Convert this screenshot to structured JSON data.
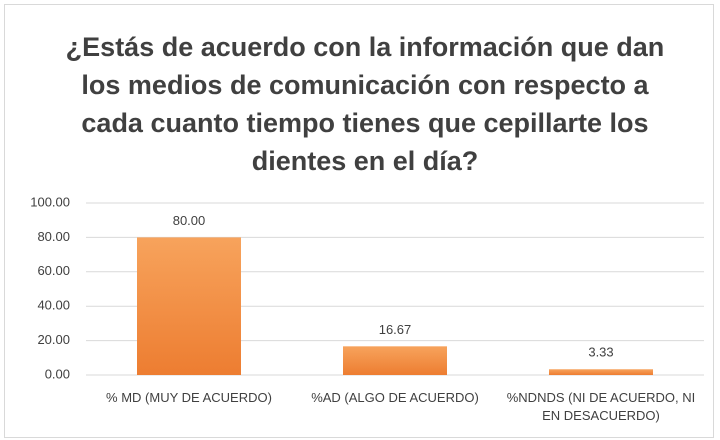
{
  "chart_data": {
    "type": "bar",
    "title": "¿Estás de acuerdo con la información que dan los medios de comunicación con respecto a cada cuanto tiempo tienes que cepillarte los dientes en el día?",
    "categories": [
      "% MD (MUY DE ACUERDO)",
      "%AD (ALGO DE ACUERDO)",
      "%NDNDS (NI DE ACUERDO, NI EN DESACUERDO)"
    ],
    "values": [
      80,
      16.67,
      3.33
    ],
    "value_labels": [
      "80.00",
      "16.67",
      "3.33"
    ],
    "color": "#ed7d31",
    "ylim": [
      0,
      100
    ],
    "yticks": [
      {
        "value": 0,
        "label": "0.00"
      },
      {
        "value": 20,
        "label": "20.00"
      },
      {
        "value": 40,
        "label": "40.00"
      },
      {
        "value": 60,
        "label": "60.00"
      },
      {
        "value": 80,
        "label": "80.00"
      },
      {
        "value": 100,
        "label": "100.00"
      }
    ],
    "grid": true
  }
}
